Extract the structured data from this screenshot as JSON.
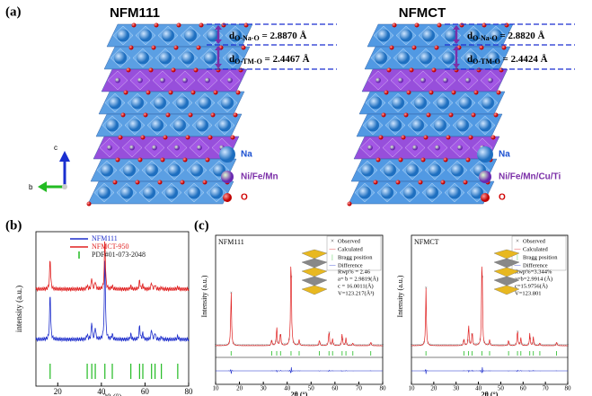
{
  "panel_a": {
    "label": "(a)",
    "axis_labels": [
      "c",
      "b"
    ],
    "structures": [
      {
        "title": "NFM111",
        "d1": {
          "symbol": "d",
          "sub": "O-Na-O",
          "value": " = 2.8870 Å"
        },
        "d2": {
          "symbol": "d",
          "sub": "O-TM-O",
          "value": " = 2.4467 Å"
        },
        "legend": [
          "Na",
          "Ni/Fe/Mn",
          "O"
        ]
      },
      {
        "title": "NFMCT",
        "d1": {
          "symbol": "d",
          "sub": "O-Na-O",
          "value": " = 2.8820 Å"
        },
        "d2": {
          "symbol": "d",
          "sub": "O-TM-O",
          "value": " = 2.4424 Å"
        },
        "legend": [
          "Na",
          "Ni/Fe/Mn/Cu/Ti",
          "O"
        ]
      }
    ]
  },
  "panel_b": {
    "label": "(b)",
    "ylabel": "intensity (a.u.)",
    "xlabel": "2θ (°)",
    "xlim": [
      10,
      80
    ],
    "xticks": [
      20,
      40,
      60,
      80
    ],
    "peaks": [
      16.5,
      33.5,
      35.6,
      37.2,
      41.6,
      45.0,
      53.5,
      57.5,
      59.0,
      63.0,
      64.6,
      67.5,
      75.0
    ],
    "series": [
      {
        "name": "NFM111",
        "color": "#1f2fcc",
        "values": [
          0.55,
          0.06,
          0.2,
          0.14,
          1.0,
          0.06,
          0.06,
          0.16,
          0.07,
          0.12,
          0.08,
          0.03,
          0.04
        ]
      },
      {
        "name": "NFMCT-950",
        "color": "#e02020",
        "values": [
          0.6,
          0.07,
          0.22,
          0.15,
          1.0,
          0.06,
          0.06,
          0.17,
          0.08,
          0.13,
          0.09,
          0.03,
          0.04
        ]
      }
    ],
    "bragg": {
      "name": "PDF#01-073-2048",
      "color": "#22bb22"
    }
  },
  "panel_c": {
    "label": "(c)",
    "plots": [
      {
        "title": "NFM111",
        "xlabel": "2θ (°)",
        "ylabel": "Intensity (a.u.)",
        "xlim": [
          10,
          80
        ],
        "xticks": [
          10,
          20,
          30,
          40,
          50,
          60,
          70,
          80
        ],
        "legend": [
          "Observed",
          "Calculated",
          "Bragg position",
          "Difference"
        ],
        "params": [
          "Rwp% = 2.46",
          "a= b = 2.9819(Å)",
          "c = 16.0011(Å)",
          "V=123.217(Å³)"
        ]
      },
      {
        "title": "NFMCT",
        "xlabel": "2θ (°)",
        "ylabel": "Intensity (a.u.)",
        "xlim": [
          10,
          80
        ],
        "xticks": [
          10,
          20,
          30,
          40,
          50,
          60,
          70,
          80
        ],
        "legend": [
          "Observed",
          "Calculated",
          "Bragg position",
          "Difference"
        ],
        "params": [
          "Rwp%=3.344%",
          "a=b=2.9914 (Å)",
          "c=15.9756(Å)",
          "V=123.801"
        ]
      }
    ]
  }
}
